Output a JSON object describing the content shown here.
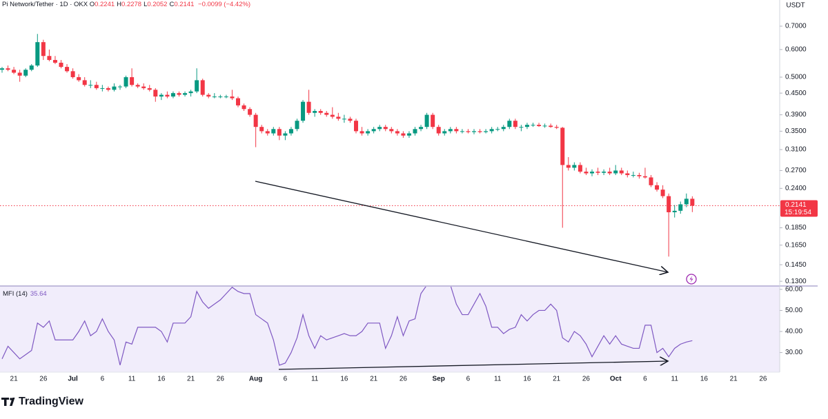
{
  "chart_data": {
    "type": "candlestick",
    "title": "Pi Network/Tether · 1D · OKX",
    "ohlc_legend": [
      {
        "label": "O",
        "value": "0.2241"
      },
      {
        "label": "H",
        "value": "0.2278"
      },
      {
        "label": "L",
        "value": "0.2052"
      },
      {
        "label": "C",
        "value": "0.2141"
      }
    ],
    "change": "−0.0099 (−4.42%)",
    "currency": "USDT",
    "up_color": "#089981",
    "down_color": "#f23645",
    "log_scale": true,
    "ylim": [
      0.126,
      0.832
    ],
    "yticks": [
      {
        "value": 0.7,
        "label": "0.7000"
      },
      {
        "value": 0.6,
        "label": "0.6000"
      },
      {
        "value": 0.5,
        "label": "0.5000"
      },
      {
        "value": 0.45,
        "label": "0.4500"
      },
      {
        "value": 0.39,
        "label": "0.3900"
      },
      {
        "value": 0.35,
        "label": "0.3500"
      },
      {
        "value": 0.31,
        "label": "0.3100"
      },
      {
        "value": 0.27,
        "label": "0.2700"
      },
      {
        "value": 0.24,
        "label": "0.2400"
      },
      {
        "value": 0.185,
        "label": "0.1850"
      },
      {
        "value": 0.165,
        "label": "0.1650"
      },
      {
        "value": 0.145,
        "label": "0.1450"
      },
      {
        "value": 0.13,
        "label": "0.1300"
      }
    ],
    "last_price": {
      "value": 0.2141,
      "label": "0.2141"
    },
    "countdown": "15:19:54",
    "categories": [
      null,
      null,
      "21",
      null,
      null,
      null,
      null,
      "26",
      null,
      null,
      null,
      null,
      "Jul",
      null,
      null,
      null,
      null,
      "6",
      null,
      null,
      null,
      null,
      "11",
      null,
      null,
      null,
      null,
      "16",
      null,
      null,
      null,
      null,
      "21",
      null,
      null,
      null,
      null,
      "26",
      null,
      null,
      null,
      null,
      null,
      "Aug",
      null,
      null,
      null,
      null,
      "6",
      null,
      null,
      null,
      null,
      "11",
      null,
      null,
      null,
      null,
      "16",
      null,
      null,
      null,
      null,
      "21",
      null,
      null,
      null,
      null,
      "26",
      null,
      null,
      null,
      null,
      null,
      "Sep",
      null,
      null,
      null,
      null,
      "6",
      null,
      null,
      null,
      null,
      "11",
      null,
      null,
      null,
      null,
      "16",
      null,
      null,
      null,
      null,
      "21",
      null,
      null,
      null,
      null,
      "26",
      null,
      null,
      null,
      null,
      "Oct",
      null,
      null,
      null,
      null,
      "6",
      null,
      null,
      null,
      null,
      "11",
      null,
      null,
      null,
      null,
      "16",
      null,
      null,
      null,
      null,
      "21",
      null,
      null,
      null,
      null,
      "26"
    ],
    "ohlc": [
      [
        0.525,
        0.535,
        0.515,
        0.53
      ],
      [
        0.53,
        0.54,
        0.52,
        0.525
      ],
      [
        0.525,
        0.535,
        0.51,
        0.515
      ],
      [
        0.515,
        0.525,
        0.485,
        0.505
      ],
      [
        0.505,
        0.53,
        0.5,
        0.525
      ],
      [
        0.525,
        0.545,
        0.52,
        0.54
      ],
      [
        0.54,
        0.665,
        0.535,
        0.63
      ],
      [
        0.63,
        0.64,
        0.56,
        0.575
      ],
      [
        0.575,
        0.6,
        0.555,
        0.56
      ],
      [
        0.56,
        0.575,
        0.545,
        0.55
      ],
      [
        0.55,
        0.56,
        0.53,
        0.535
      ],
      [
        0.535,
        0.545,
        0.515,
        0.52
      ],
      [
        0.52,
        0.53,
        0.495,
        0.5
      ],
      [
        0.5,
        0.51,
        0.485,
        0.49
      ],
      [
        0.49,
        0.5,
        0.47,
        0.475
      ],
      [
        0.475,
        0.49,
        0.465,
        0.475
      ],
      [
        0.475,
        0.485,
        0.46,
        0.465
      ],
      [
        0.465,
        0.475,
        0.455,
        0.465
      ],
      [
        0.465,
        0.47,
        0.455,
        0.46
      ],
      [
        0.46,
        0.48,
        0.455,
        0.47
      ],
      [
        0.47,
        0.475,
        0.46,
        0.47
      ],
      [
        0.47,
        0.505,
        0.465,
        0.5
      ],
      [
        0.5,
        0.53,
        0.47,
        0.475
      ],
      [
        0.475,
        0.48,
        0.465,
        0.47
      ],
      [
        0.47,
        0.48,
        0.46,
        0.465
      ],
      [
        0.465,
        0.475,
        0.455,
        0.46
      ],
      [
        0.46,
        0.465,
        0.425,
        0.44
      ],
      [
        0.44,
        0.45,
        0.43,
        0.445
      ],
      [
        0.445,
        0.455,
        0.435,
        0.44
      ],
      [
        0.44,
        0.455,
        0.435,
        0.45
      ],
      [
        0.45,
        0.455,
        0.44,
        0.445
      ],
      [
        0.445,
        0.455,
        0.44,
        0.45
      ],
      [
        0.45,
        0.46,
        0.44,
        0.455
      ],
      [
        0.455,
        0.53,
        0.45,
        0.49
      ],
      [
        0.49,
        0.495,
        0.44,
        0.445
      ],
      [
        0.445,
        0.45,
        0.435,
        0.44
      ],
      [
        0.44,
        0.45,
        0.435,
        0.44
      ],
      [
        0.44,
        0.445,
        0.435,
        0.44
      ],
      [
        0.44,
        0.445,
        0.435,
        0.44
      ],
      [
        0.44,
        0.46,
        0.43,
        0.435
      ],
      [
        0.435,
        0.44,
        0.41,
        0.415
      ],
      [
        0.415,
        0.42,
        0.4,
        0.405
      ],
      [
        0.405,
        0.41,
        0.385,
        0.39
      ],
      [
        0.39,
        0.395,
        0.315,
        0.36
      ],
      [
        0.36,
        0.365,
        0.345,
        0.35
      ],
      [
        0.35,
        0.355,
        0.34,
        0.345
      ],
      [
        0.345,
        0.36,
        0.34,
        0.355
      ],
      [
        0.355,
        0.36,
        0.33,
        0.34
      ],
      [
        0.34,
        0.35,
        0.33,
        0.345
      ],
      [
        0.345,
        0.36,
        0.34,
        0.355
      ],
      [
        0.355,
        0.38,
        0.35,
        0.375
      ],
      [
        0.375,
        0.43,
        0.37,
        0.425
      ],
      [
        0.425,
        0.46,
        0.39,
        0.395
      ],
      [
        0.395,
        0.405,
        0.385,
        0.4
      ],
      [
        0.4,
        0.405,
        0.39,
        0.395
      ],
      [
        0.395,
        0.4,
        0.385,
        0.39
      ],
      [
        0.39,
        0.41,
        0.38,
        0.385
      ],
      [
        0.385,
        0.395,
        0.375,
        0.38
      ],
      [
        0.38,
        0.39,
        0.37,
        0.38
      ],
      [
        0.38,
        0.385,
        0.37,
        0.375
      ],
      [
        0.375,
        0.38,
        0.345,
        0.35
      ],
      [
        0.35,
        0.36,
        0.34,
        0.345
      ],
      [
        0.345,
        0.355,
        0.34,
        0.35
      ],
      [
        0.35,
        0.36,
        0.345,
        0.355
      ],
      [
        0.355,
        0.365,
        0.35,
        0.36
      ],
      [
        0.36,
        0.365,
        0.35,
        0.355
      ],
      [
        0.355,
        0.36,
        0.345,
        0.35
      ],
      [
        0.35,
        0.355,
        0.34,
        0.345
      ],
      [
        0.345,
        0.35,
        0.335,
        0.34
      ],
      [
        0.34,
        0.35,
        0.335,
        0.345
      ],
      [
        0.345,
        0.36,
        0.34,
        0.355
      ],
      [
        0.355,
        0.365,
        0.35,
        0.36
      ],
      [
        0.36,
        0.395,
        0.355,
        0.39
      ],
      [
        0.39,
        0.395,
        0.355,
        0.36
      ],
      [
        0.36,
        0.365,
        0.34,
        0.345
      ],
      [
        0.345,
        0.355,
        0.34,
        0.35
      ],
      [
        0.35,
        0.36,
        0.345,
        0.355
      ],
      [
        0.355,
        0.36,
        0.345,
        0.35
      ],
      [
        0.35,
        0.355,
        0.345,
        0.35
      ],
      [
        0.35,
        0.355,
        0.345,
        0.348
      ],
      [
        0.348,
        0.355,
        0.343,
        0.35
      ],
      [
        0.35,
        0.355,
        0.345,
        0.348
      ],
      [
        0.348,
        0.355,
        0.345,
        0.35
      ],
      [
        0.35,
        0.36,
        0.345,
        0.355
      ],
      [
        0.355,
        0.36,
        0.35,
        0.355
      ],
      [
        0.355,
        0.365,
        0.35,
        0.36
      ],
      [
        0.36,
        0.38,
        0.355,
        0.375
      ],
      [
        0.375,
        0.38,
        0.355,
        0.36
      ],
      [
        0.36,
        0.365,
        0.35,
        0.36
      ],
      [
        0.36,
        0.37,
        0.355,
        0.365
      ],
      [
        0.365,
        0.37,
        0.36,
        0.365
      ],
      [
        0.365,
        0.37,
        0.36,
        0.362
      ],
      [
        0.362,
        0.368,
        0.358,
        0.363
      ],
      [
        0.363,
        0.368,
        0.358,
        0.36
      ],
      [
        0.36,
        0.365,
        0.355,
        0.358
      ],
      [
        0.358,
        0.36,
        0.185,
        0.28
      ],
      [
        0.28,
        0.295,
        0.27,
        0.275
      ],
      [
        0.275,
        0.285,
        0.27,
        0.28
      ],
      [
        0.28,
        0.285,
        0.265,
        0.268
      ],
      [
        0.268,
        0.275,
        0.262,
        0.265
      ],
      [
        0.265,
        0.272,
        0.26,
        0.268
      ],
      [
        0.268,
        0.275,
        0.262,
        0.266
      ],
      [
        0.266,
        0.272,
        0.262,
        0.268
      ],
      [
        0.268,
        0.275,
        0.262,
        0.265
      ],
      [
        0.265,
        0.28,
        0.262,
        0.27
      ],
      [
        0.27,
        0.275,
        0.262,
        0.265
      ],
      [
        0.265,
        0.27,
        0.258,
        0.262
      ],
      [
        0.262,
        0.268,
        0.258,
        0.262
      ],
      [
        0.262,
        0.266,
        0.256,
        0.26
      ],
      [
        0.26,
        0.275,
        0.256,
        0.258
      ],
      [
        0.258,
        0.262,
        0.242,
        0.245
      ],
      [
        0.245,
        0.25,
        0.235,
        0.238
      ],
      [
        0.238,
        0.245,
        0.225,
        0.228
      ],
      [
        0.228,
        0.232,
        0.153,
        0.205
      ],
      [
        0.205,
        0.215,
        0.198,
        0.207
      ],
      [
        0.207,
        0.22,
        0.203,
        0.216
      ],
      [
        0.216,
        0.232,
        0.212,
        0.2241
      ],
      [
        0.2241,
        0.2278,
        0.2052,
        0.2141
      ],
      null,
      null,
      null,
      null,
      null,
      null,
      null,
      null,
      null,
      null,
      null,
      null
    ],
    "mfi": {
      "name": "MFI (14)",
      "last": 35.64,
      "color": "#7e57c2",
      "ylim": [
        20.7,
        61.6
      ],
      "yticks": [
        {
          "value": 60,
          "label": "60.00"
        },
        {
          "value": 50,
          "label": "50.00"
        },
        {
          "value": 40,
          "label": "40.00"
        },
        {
          "value": 30,
          "label": "30.00"
        }
      ],
      "values": [
        27,
        33,
        30,
        27,
        29,
        31,
        44,
        42,
        45,
        36,
        36,
        36,
        36,
        40,
        45,
        38,
        40,
        46,
        40,
        36,
        24,
        35,
        34,
        42,
        42,
        42,
        42,
        40,
        35,
        44,
        44,
        44,
        47,
        59,
        54,
        51,
        53,
        55,
        58,
        61,
        59,
        58,
        58,
        48,
        46,
        44,
        36,
        24,
        25,
        30,
        37,
        48,
        38,
        32,
        38,
        36,
        37,
        38,
        39,
        38,
        38,
        40,
        44,
        44,
        44,
        32,
        38,
        47,
        38,
        45,
        46,
        58,
        62,
        62,
        62,
        62,
        62,
        53,
        48,
        48,
        53,
        58,
        52,
        42,
        42,
        39,
        41,
        42,
        48,
        45,
        48,
        50,
        50,
        53,
        50,
        37,
        35,
        40,
        38,
        34,
        28,
        33,
        38,
        34,
        38,
        34,
        33,
        32,
        32,
        43,
        43,
        30,
        32,
        28,
        32,
        34,
        35,
        35.64,
        null,
        null,
        null,
        null,
        null,
        null,
        null,
        null,
        null,
        null,
        null,
        null
      ]
    },
    "branding": "TradingView"
  }
}
